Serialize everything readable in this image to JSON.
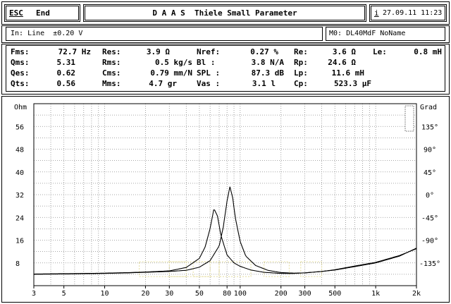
{
  "topbar": {
    "esc": "ESC",
    "end": "End",
    "title": "D A A S  Thiele Small Parameter",
    "info_icon": "i",
    "datetime": "27.09.11 11:23"
  },
  "inputbar": {
    "input": "In: Line  ±0.20 V",
    "memory": "M0: DL40MdF NoName"
  },
  "params": [
    {
      "label": "Fms:",
      "value": "72.7 Hz"
    },
    {
      "label": "Res:",
      "value": "3.9 Ω"
    },
    {
      "label": "Nref:",
      "value": "0.27 %"
    },
    {
      "label": "Re:",
      "value": "3.6 Ω"
    },
    {
      "label": "Le:",
      "value": "0.8 mH"
    },
    {
      "label": "Qms:",
      "value": "5.31"
    },
    {
      "label": "Rms:",
      "value": "0.5 kg/s"
    },
    {
      "label": "Bl :",
      "value": "3.8 N/A"
    },
    {
      "label": "Rp:",
      "value": "24.6 Ω"
    },
    {
      "label": "Qes:",
      "value": "0.62"
    },
    {
      "label": "Cms:",
      "value": "0.79 mm/N"
    },
    {
      "label": "SPL :",
      "value": "87.3 dB"
    },
    {
      "label": "Lp:",
      "value": "11.6 mH"
    },
    {
      "label": "Qts:",
      "value": "0.56"
    },
    {
      "label": "Mms:",
      "value": "4.7 gr"
    },
    {
      "label": "Vas :",
      "value": "3.1 l"
    },
    {
      "label": "Cp:",
      "value": "523.3 µF"
    }
  ],
  "chart_data": {
    "type": "line",
    "x_scale": "log",
    "xlim": [
      3,
      2000
    ],
    "ylim": [
      0,
      64
    ],
    "y2lim": [
      -180,
      180
    ],
    "grid": true,
    "y_unit": "Ohm",
    "y2_unit": "Grad",
    "x_ticks": [
      "3",
      "5",
      "10",
      "20",
      "30",
      "50",
      "80",
      "100",
      "200",
      "300",
      "500",
      "1k",
      "2k"
    ],
    "y_ticks": [
      "56",
      "48",
      "40",
      "32",
      "24",
      "16",
      "8"
    ],
    "y2_ticks": [
      "135°",
      "90°",
      "45°",
      "0°",
      "-45°",
      "-90°",
      "-135°"
    ],
    "series": [
      {
        "x": [
          3,
          5,
          10,
          15,
          20,
          30,
          40,
          50,
          55,
          60,
          64,
          68,
          72,
          80,
          90,
          100,
          120,
          150,
          200,
          250,
          300,
          400,
          500,
          700,
          1000,
          1500,
          2000
        ],
        "y": [
          4.1,
          4.2,
          4.4,
          4.6,
          4.8,
          5.2,
          6.4,
          9.6,
          13.5,
          20.1,
          27.1,
          24.5,
          17.8,
          10.8,
          8.0,
          6.8,
          5.5,
          4.7,
          4.3,
          4.3,
          4.5,
          5.0,
          5.6,
          6.9,
          8.2,
          10.6,
          13.0
        ]
      },
      {
        "x": [
          3,
          5,
          10,
          15,
          20,
          30,
          40,
          50,
          60,
          70,
          75,
          80,
          84,
          88,
          92,
          100,
          110,
          130,
          160,
          200,
          250,
          300,
          400,
          500,
          700,
          1000,
          1500,
          2000
        ],
        "y": [
          4.0,
          4.1,
          4.3,
          4.5,
          4.7,
          5.0,
          5.4,
          6.5,
          8.8,
          14.0,
          20.5,
          29.8,
          34.8,
          31.0,
          24.0,
          15.5,
          10.4,
          7.1,
          5.4,
          4.6,
          4.4,
          4.5,
          5.0,
          5.5,
          6.7,
          8.0,
          10.4,
          13.2
        ]
      }
    ]
  }
}
